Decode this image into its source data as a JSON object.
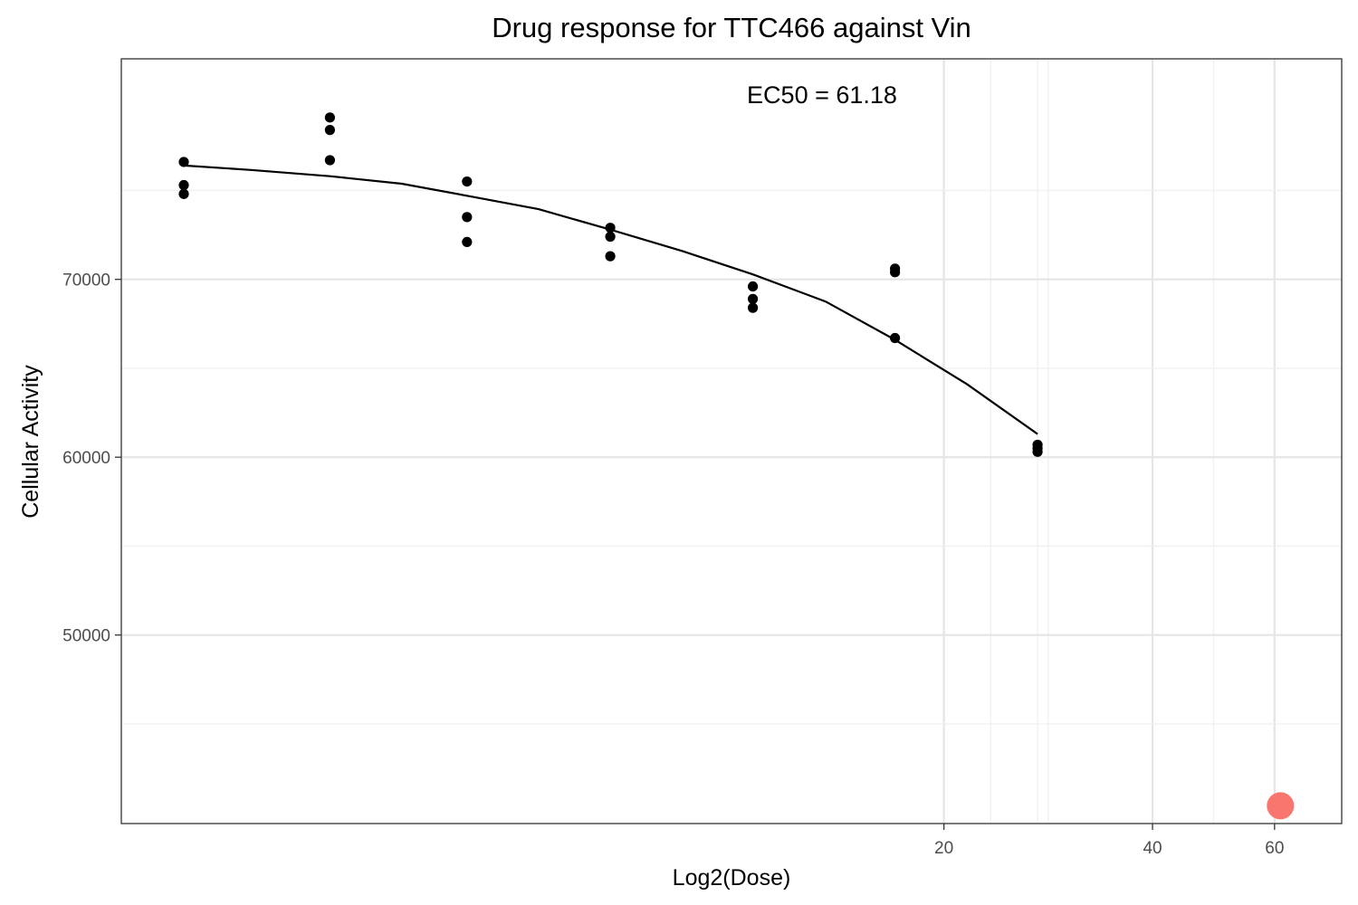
{
  "chart_data": {
    "type": "scatter",
    "title": "Drug response for TTC466 against Vin",
    "xlabel": "Log2(Dose)",
    "ylabel": "Cellular Activity",
    "x_scale": "log",
    "xlim": [
      1.3,
      75
    ],
    "ylim": [
      39400,
      82400
    ],
    "x_ticks": [
      20,
      40,
      60
    ],
    "y_ticks": [
      50000,
      60000,
      70000
    ],
    "grid": true,
    "legend": "none",
    "annotation": "EC50 = 61.18",
    "doses": [
      1.6,
      2.6,
      4.1,
      6.6,
      10.6,
      17.0,
      27.3
    ],
    "series": [
      {
        "values": [
          [
            76600,
            75300,
            74800
          ],
          [
            79100,
            78400,
            76700
          ],
          [
            75500,
            73500,
            72100
          ],
          [
            72900,
            72400,
            71300
          ],
          [
            69600,
            68900,
            68400
          ],
          [
            70600,
            70400,
            66700
          ],
          [
            60700,
            60500,
            60300
          ]
        ],
        "color": "#000000"
      }
    ],
    "fit_curve": {
      "x": [
        1.6,
        2.0,
        2.6,
        3.3,
        4.1,
        5.2,
        6.6,
        8.4,
        10.6,
        13.5,
        17.0,
        21.6,
        27.3
      ],
      "y": [
        76400,
        76150,
        75800,
        75380,
        74700,
        73950,
        72800,
        71580,
        70280,
        68750,
        66600,
        64100,
        61300
      ],
      "color": "#000000"
    },
    "ec50_point": {
      "x": 61.18,
      "y": 40400,
      "color": "#F8766D"
    }
  }
}
